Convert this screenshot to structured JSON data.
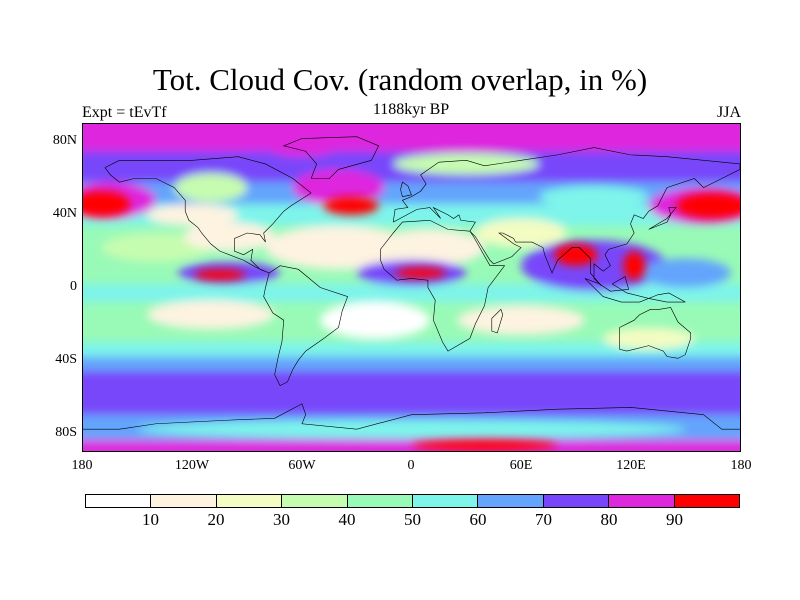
{
  "title": "Tot. Cloud Cov. (random overlap, in %)",
  "left_string": "Expt = tEvTf",
  "center_string": "1188kyr BP",
  "right_string": "JJA",
  "lat_labels": [
    "80N",
    "40N",
    "0",
    "40S",
    "80S"
  ],
  "lon_labels": [
    "180",
    "120W",
    "60W",
    "0",
    "60E",
    "120E",
    "180"
  ],
  "colorbar": {
    "labels": [
      "10",
      "20",
      "30",
      "40",
      "50",
      "60",
      "70",
      "80",
      "90"
    ],
    "colors": [
      "#ffffff",
      "#fdf3e0",
      "#f3fcc2",
      "#c6fcb0",
      "#98fab6",
      "#7ef4ea",
      "#64a4fc",
      "#7846fa",
      "#de28de",
      "#ff0000"
    ]
  }
}
